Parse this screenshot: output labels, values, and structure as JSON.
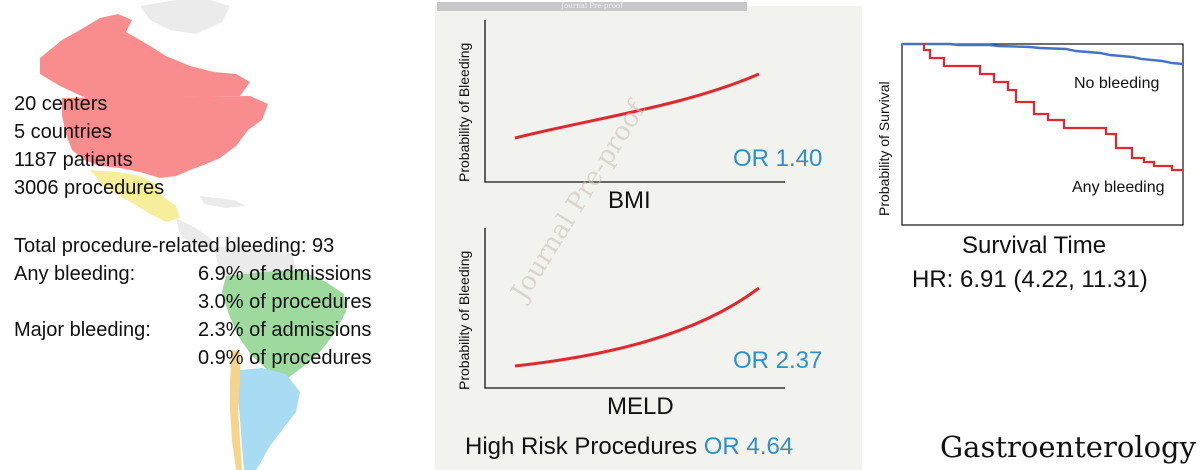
{
  "summary": {
    "stats": [
      "20 centers",
      "5 countries",
      "1187 patients",
      "3006 procedures"
    ],
    "total_bleeding": "Total procedure-related bleeding: 93",
    "any_bleeding_label": "Any bleeding:",
    "any_bleeding_values": [
      "6.9% of admissions",
      "3.0% of procedures"
    ],
    "major_bleeding_label": "Major bleeding:",
    "major_bleeding_values": [
      "2.3% of admissions",
      "0.9% of procedures"
    ]
  },
  "map_colors": {
    "north_america": "#f98c8c",
    "mexico": "#f6ee9a",
    "south_america": "#9ed99e",
    "southern_cone": "#a8dcf2",
    "chile": "#f6d48c",
    "land": "#ebebeb"
  },
  "watermark": {
    "diagonal": "Journal Pre-proof",
    "top_bar": "Journal Pre-proof"
  },
  "bmi_chart": {
    "ylabel": "Probability of Bleeding",
    "xlabel": "BMI",
    "or_label": "OR 1.40"
  },
  "meld_chart": {
    "ylabel": "Probability of Bleeding",
    "xlabel": "MELD",
    "or_label": "OR 2.37"
  },
  "high_risk": {
    "label": "High Risk Procedures",
    "or_label": "OR 4.64"
  },
  "km_chart": {
    "ylabel": "Probability of Survival",
    "no_bleeding_label": "No bleeding",
    "any_bleeding_label": "Any bleeding",
    "xlabel": "Survival Time",
    "hr_text": "HR: 6.91 (4.22, 11.31)"
  },
  "colors": {
    "curve_red": "#e0282e",
    "curve_blue": "#4472c4",
    "or_blue": "#2e90c9"
  },
  "journal": "Gastroenterology"
}
